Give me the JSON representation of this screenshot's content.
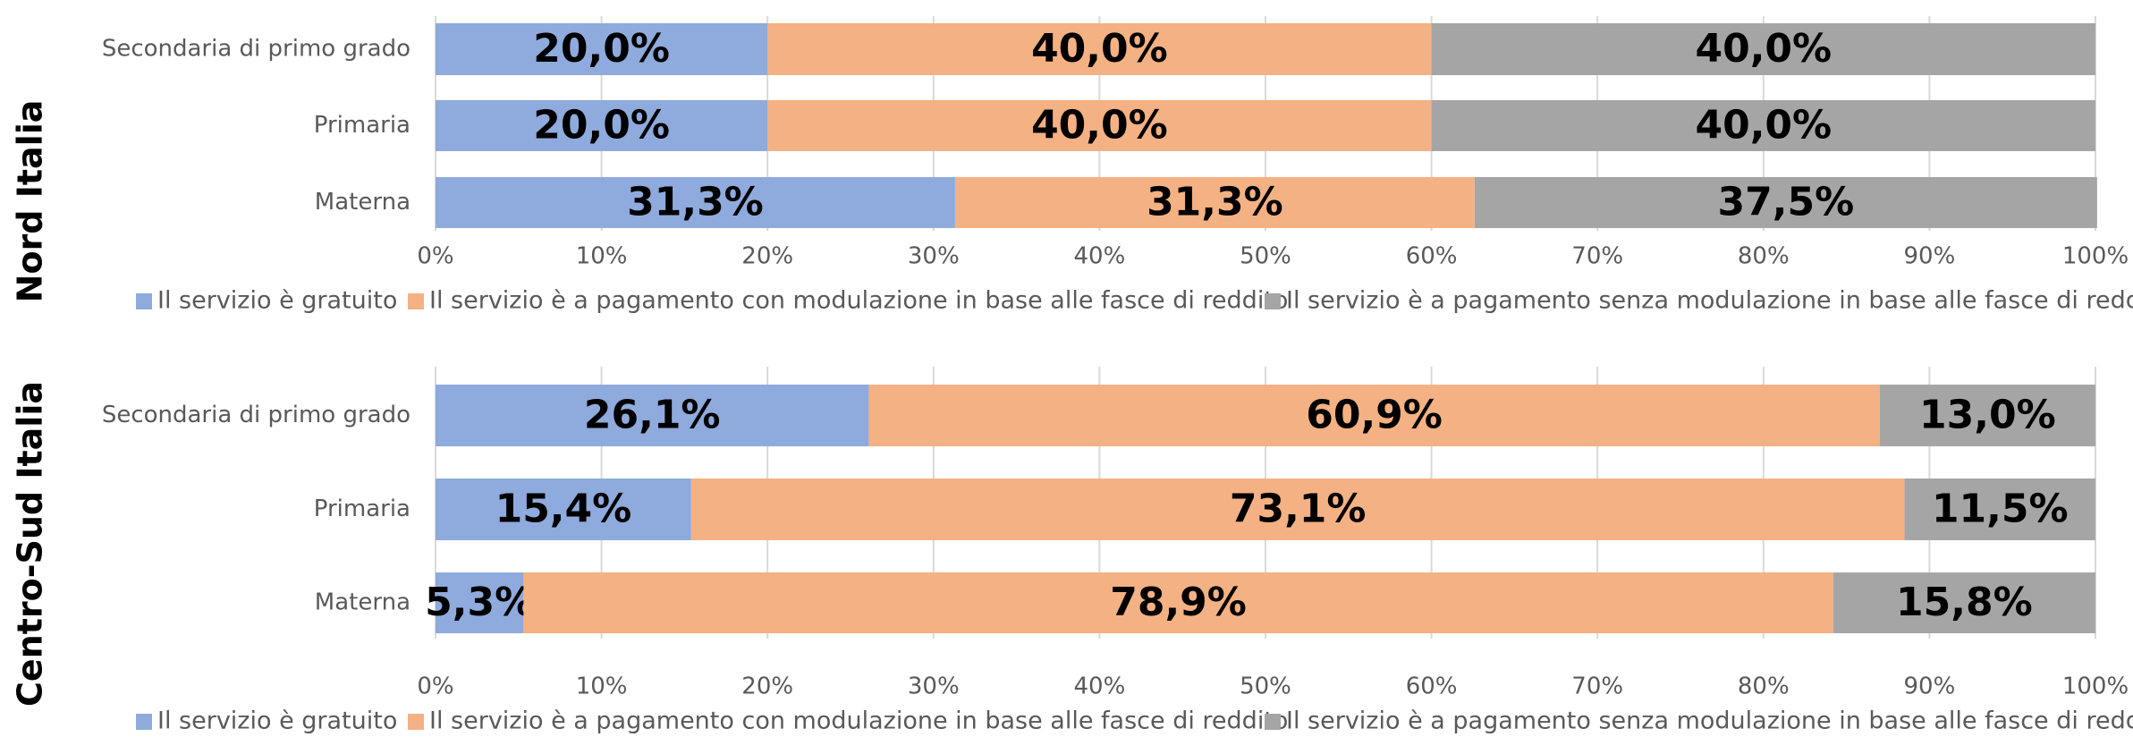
{
  "chart_data": [
    {
      "type": "stacked-bar-horizontal",
      "title": "Nord Italia",
      "categories": [
        "Secondaria di primo grado",
        "Primaria",
        "Materna"
      ],
      "series": [
        {
          "name": "Il servizio è gratuito",
          "color": "#8faadc",
          "values": [
            20.0,
            20.0,
            31.3
          ],
          "value_labels": [
            "20,0%",
            "20,0%",
            "31,3%"
          ]
        },
        {
          "name": "Il servizio è a pagamento con modulazione in base alle fasce di reddito",
          "color": "#f4b183",
          "values": [
            40.0,
            40.0,
            31.3
          ],
          "value_labels": [
            "40,0%",
            "40,0%",
            "31,3%"
          ]
        },
        {
          "name": "Il servizio è a pagamento senza modulazione in base alle fasce di reddito",
          "color": "#a5a5a5",
          "values": [
            40.0,
            40.0,
            37.5
          ],
          "value_labels": [
            "40,0%",
            "40,0%",
            "37,5%"
          ]
        }
      ],
      "xlim": [
        0,
        100
      ],
      "xticks": [
        {
          "value": 0,
          "label": "0%"
        },
        {
          "value": 10,
          "label": "10%"
        },
        {
          "value": 20,
          "label": "20%"
        },
        {
          "value": 30,
          "label": "30%"
        },
        {
          "value": 40,
          "label": "40%"
        },
        {
          "value": 50,
          "label": "50%"
        },
        {
          "value": 60,
          "label": "60%"
        },
        {
          "value": 70,
          "label": "70%"
        },
        {
          "value": 80,
          "label": "80%"
        },
        {
          "value": 90,
          "label": "90%"
        },
        {
          "value": 100,
          "label": "100%"
        }
      ],
      "grid": true,
      "legend": "bottom"
    },
    {
      "type": "stacked-bar-horizontal",
      "title": "Centro-Sud Italia",
      "categories": [
        "Secondaria di primo grado",
        "Primaria",
        "Materna"
      ],
      "series": [
        {
          "name": "Il servizio è gratuito",
          "color": "#8faadc",
          "values": [
            26.1,
            15.4,
            5.3
          ],
          "value_labels": [
            "26,1%",
            "15,4%",
            "5,3%"
          ]
        },
        {
          "name": "Il servizio è a pagamento con modulazione in base alle fasce di reddito",
          "color": "#f4b183",
          "values": [
            60.9,
            73.1,
            78.9
          ],
          "value_labels": [
            "60,9%",
            "73,1%",
            "78,9%"
          ]
        },
        {
          "name": "Il servizio è a pagamento senza modulazione in base alle fasce di reddito",
          "color": "#a5a5a5",
          "values": [
            13.0,
            11.5,
            15.8
          ],
          "value_labels": [
            "13,0%",
            "11,5%",
            "15,8%"
          ]
        }
      ],
      "xlim": [
        0,
        100
      ],
      "xticks": [
        {
          "value": 0,
          "label": "0%"
        },
        {
          "value": 10,
          "label": "10%"
        },
        {
          "value": 20,
          "label": "20%"
        },
        {
          "value": 30,
          "label": "30%"
        },
        {
          "value": 40,
          "label": "40%"
        },
        {
          "value": 50,
          "label": "50%"
        },
        {
          "value": 60,
          "label": "60%"
        },
        {
          "value": 70,
          "label": "70%"
        },
        {
          "value": 80,
          "label": "80%"
        },
        {
          "value": 90,
          "label": "90%"
        },
        {
          "value": 100,
          "label": "100%"
        }
      ],
      "grid": true,
      "legend": "bottom"
    }
  ]
}
